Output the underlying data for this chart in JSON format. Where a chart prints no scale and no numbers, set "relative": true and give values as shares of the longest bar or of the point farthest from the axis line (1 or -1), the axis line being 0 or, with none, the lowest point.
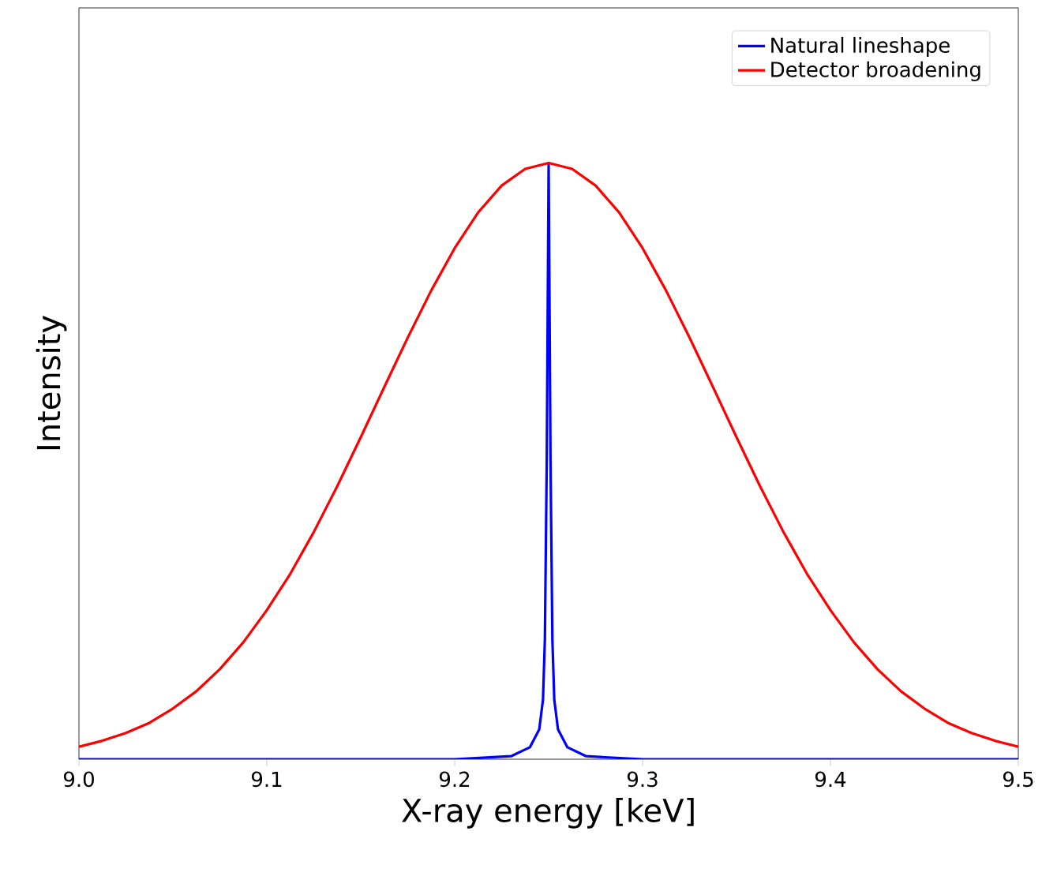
{
  "chart_data": {
    "type": "line",
    "relative": true,
    "xlabel": "X-ray energy [keV]",
    "ylabel": "Intensity",
    "xlim": [
      9.0,
      9.5
    ],
    "xticks": [
      {
        "value": 9.0,
        "label": "9.0"
      },
      9.1,
      9.2,
      9.3,
      9.4,
      {
        "value": 9.5,
        "label": "9.5"
      }
    ],
    "tick_labels": "x",
    "legend": "top right",
    "series": [
      {
        "name": "Natural lineshape",
        "color": "#0000ff",
        "x": [
          9.0,
          9.2,
          9.23,
          9.24,
          9.245,
          9.247,
          9.248,
          9.249,
          9.25,
          9.251,
          9.252,
          9.253,
          9.255,
          9.26,
          9.27,
          9.3,
          9.5
        ],
        "values": [
          0,
          0,
          0.005,
          0.02,
          0.05,
          0.1,
          0.2,
          0.5,
          1,
          0.5,
          0.2,
          0.1,
          0.05,
          0.02,
          0.005,
          0,
          0
        ]
      },
      {
        "name": "Detector broadening",
        "color": "#ff0000",
        "x": [
          9.0,
          9.0125,
          9.025,
          9.0375,
          9.05,
          9.0625,
          9.075,
          9.0875,
          9.1,
          9.1125,
          9.125,
          9.1375,
          9.15,
          9.1625,
          9.175,
          9.1875,
          9.2,
          9.2125,
          9.225,
          9.2375,
          9.25,
          9.2625,
          9.275,
          9.2875,
          9.3,
          9.3125,
          9.325,
          9.3375,
          9.35,
          9.3625,
          9.375,
          9.3875,
          9.4,
          9.4125,
          9.425,
          9.4375,
          9.45,
          9.4625,
          9.475,
          9.4875,
          9.5
        ],
        "values": [
          0.021,
          0.031,
          0.044,
          0.061,
          0.085,
          0.114,
          0.151,
          0.196,
          0.25,
          0.311,
          0.381,
          0.458,
          0.54,
          0.624,
          0.707,
          0.786,
          0.857,
          0.917,
          0.962,
          0.99,
          1,
          0.99,
          0.962,
          0.917,
          0.857,
          0.786,
          0.707,
          0.624,
          0.54,
          0.458,
          0.381,
          0.311,
          0.25,
          0.196,
          0.151,
          0.114,
          0.085,
          0.061,
          0.044,
          0.031,
          0.021
        ]
      }
    ]
  }
}
